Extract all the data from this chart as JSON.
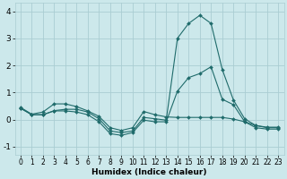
{
  "xlabel": "Humidex (Indice chaleur)",
  "ylabel": "",
  "xlim": [
    -0.5,
    23.5
  ],
  "ylim": [
    -1.3,
    4.3
  ],
  "bg_color": "#cce8eb",
  "grid_color": "#aacdd2",
  "line_color": "#1f6b6b",
  "xticks": [
    0,
    1,
    2,
    3,
    4,
    5,
    6,
    7,
    8,
    9,
    10,
    11,
    12,
    13,
    14,
    15,
    16,
    17,
    18,
    19,
    20,
    21,
    22,
    23
  ],
  "yticks": [
    -1,
    0,
    1,
    2,
    3,
    4
  ],
  "line1_x": [
    0,
    1,
    2,
    3,
    4,
    5,
    6,
    7,
    8,
    9,
    10,
    11,
    12,
    13,
    14,
    15,
    16,
    17,
    18,
    19,
    20,
    21,
    22,
    23
  ],
  "line1_y": [
    0.45,
    0.2,
    0.28,
    0.58,
    0.58,
    0.48,
    0.32,
    0.12,
    -0.3,
    -0.4,
    -0.3,
    0.3,
    0.18,
    0.1,
    0.08,
    0.08,
    0.08,
    0.08,
    0.08,
    0.02,
    -0.08,
    -0.22,
    -0.28,
    -0.28
  ],
  "line2_x": [
    0,
    1,
    2,
    3,
    4,
    5,
    6,
    7,
    8,
    9,
    10,
    11,
    12,
    13,
    14,
    15,
    16,
    17,
    18,
    19,
    20,
    21,
    22,
    23
  ],
  "line2_y": [
    0.42,
    0.18,
    0.18,
    0.33,
    0.38,
    0.38,
    0.28,
    0.03,
    -0.42,
    -0.48,
    -0.42,
    0.08,
    0.03,
    -0.02,
    3.0,
    3.55,
    3.85,
    3.55,
    1.85,
    0.72,
    0.03,
    -0.22,
    -0.3,
    -0.3
  ],
  "line3_x": [
    0,
    1,
    2,
    3,
    4,
    5,
    6,
    7,
    8,
    9,
    10,
    11,
    12,
    13,
    14,
    15,
    16,
    17,
    18,
    19,
    20,
    21,
    22,
    23
  ],
  "line3_y": [
    0.42,
    0.18,
    0.18,
    0.32,
    0.32,
    0.28,
    0.18,
    -0.08,
    -0.52,
    -0.58,
    -0.48,
    -0.02,
    -0.08,
    -0.08,
    1.05,
    1.55,
    1.7,
    1.95,
    0.75,
    0.55,
    -0.08,
    -0.3,
    -0.35,
    -0.35
  ]
}
